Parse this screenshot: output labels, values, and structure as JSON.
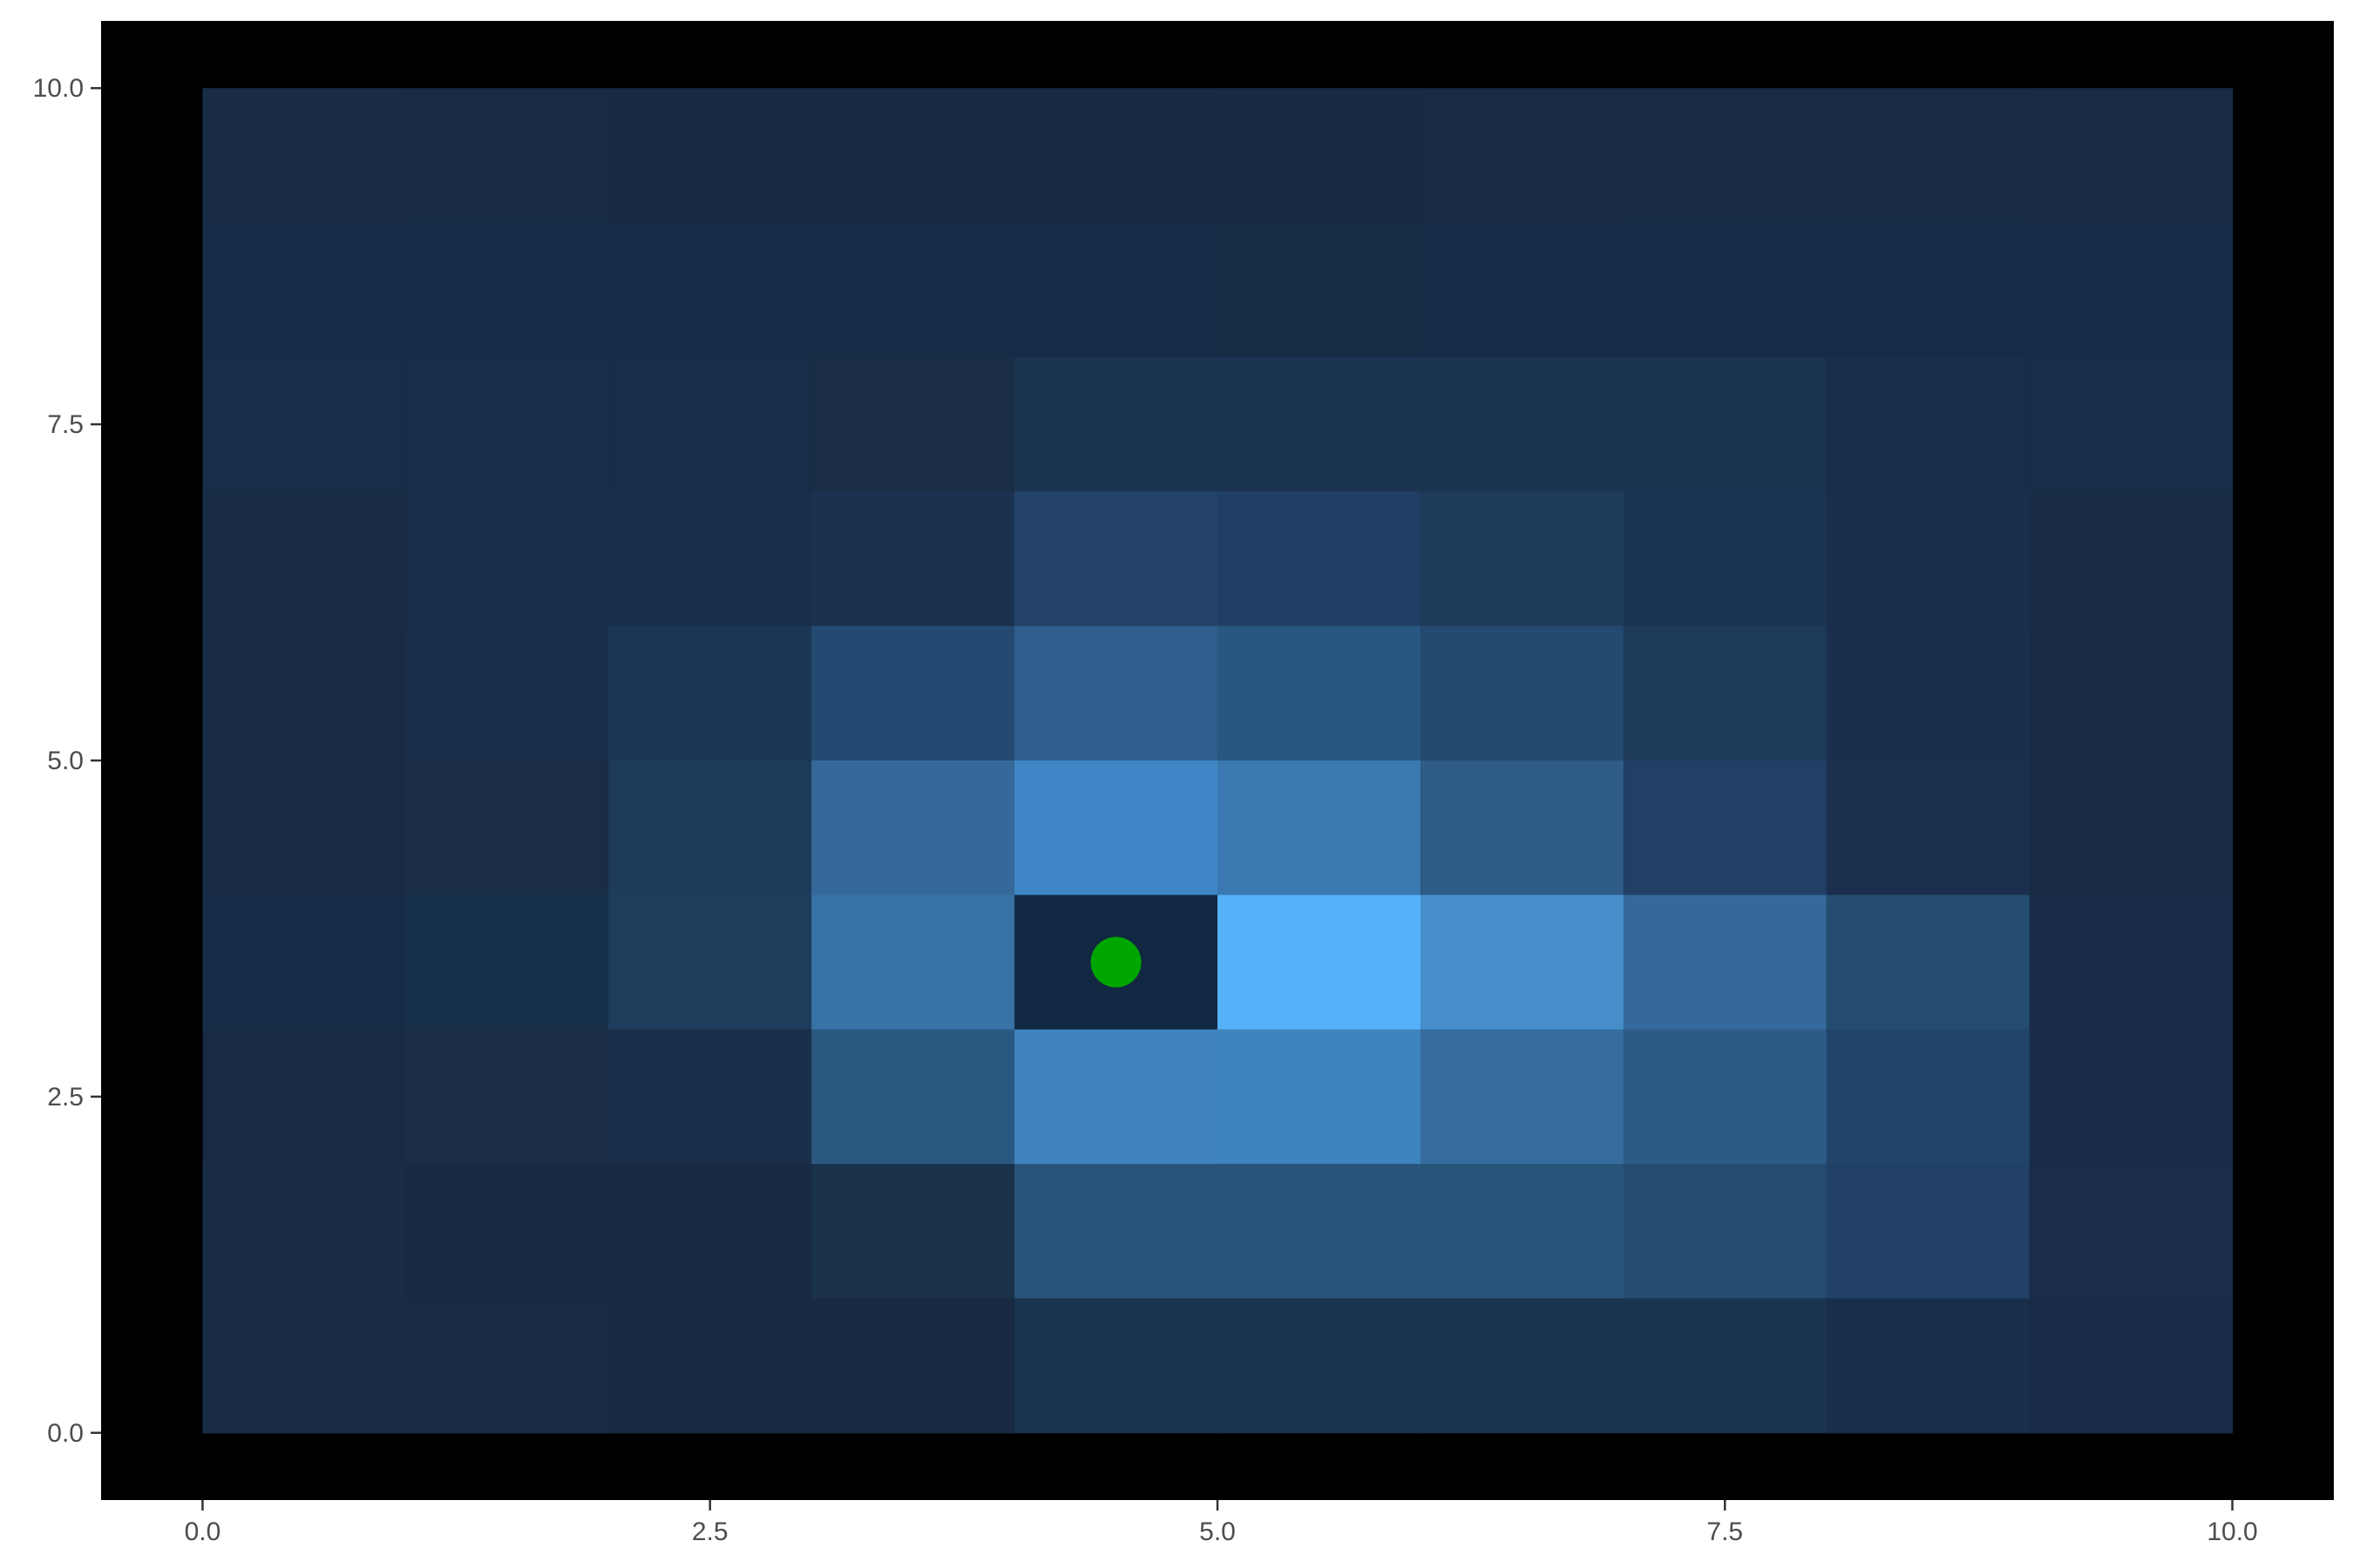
{
  "chart_data": {
    "type": "heatmap",
    "title": "",
    "xlabel": "",
    "ylabel": "",
    "xlim": [
      -0.5,
      10.5
    ],
    "ylim": [
      -0.5,
      10.5
    ],
    "grid": false,
    "legend": "none",
    "panel_background": "#000000",
    "x_ticks": [
      {
        "value": 0,
        "label": "0.0"
      },
      {
        "value": 2.5,
        "label": "2.5"
      },
      {
        "value": 5,
        "label": "5.0"
      },
      {
        "value": 7.5,
        "label": "7.5"
      },
      {
        "value": 10,
        "label": "10.0"
      }
    ],
    "y_ticks": [
      {
        "value": 0,
        "label": "0.0"
      },
      {
        "value": 2.5,
        "label": "2.5"
      },
      {
        "value": 5,
        "label": "5.0"
      },
      {
        "value": 7.5,
        "label": "7.5"
      },
      {
        "value": 10,
        "label": "10.0"
      }
    ],
    "x_edges": [
      0,
      1,
      2,
      3,
      4,
      5,
      6,
      7,
      8,
      9,
      10
    ],
    "y_edges": [
      0,
      1,
      2,
      3,
      4,
      5,
      6,
      7,
      8,
      9,
      10
    ],
    "rows_from_top": [
      [
        "#182c45",
        "#172b44",
        "#172a43",
        "#172a43",
        "#172a43",
        "#182a43",
        "#182a44",
        "#172b44",
        "#172b44",
        "#182b45"
      ],
      [
        "#172d47",
        "#162d48",
        "#172c47",
        "#172c46",
        "#172c46",
        "#162c45",
        "#162c46",
        "#152c47",
        "#152c48",
        "#162c47"
      ],
      [
        "#172d48",
        "#172d49",
        "#172d48",
        "#192d47",
        "#1b3452",
        "#1b3452",
        "#1a3350",
        "#1a3350",
        "#172d49",
        "#172d48"
      ],
      [
        "#182c45",
        "#182e48",
        "#172f4a",
        "#1a3150",
        "#234468",
        "#213f65",
        "#1f3b5a",
        "#1a3453",
        "#182e4b",
        "#192c46"
      ],
      [
        "#182b44",
        "#182d47",
        "#1b3554",
        "#244a72",
        "#2f5f8c",
        "#2a5781",
        "#244a6f",
        "#1e3a59",
        "#192f4d",
        "#182b45"
      ],
      [
        "#182b45",
        "#192d47",
        "#1e3a5b",
        "#35699a",
        "#3e86c5",
        "#3a79b1",
        "#2e5c87",
        "#223f65",
        "#1a304e",
        "#182b44"
      ],
      [
        "#172c47",
        "#163149",
        "#1d3d5d",
        "#3872a6",
        "#122842",
        "#57b1f9",
        "#458ec9",
        "#36699b",
        "#244c70",
        "#182c48"
      ],
      [
        "#182a44",
        "#192d47",
        "#1a2f4a",
        "#2b5880",
        "#3f84bf",
        "#3e84bd",
        "#366d9f",
        "#2d5b88",
        "#224469",
        "#192c47"
      ],
      [
        "#182c46",
        "#172a43",
        "#172a42",
        "#193149",
        "#285479",
        "#285479",
        "#285479",
        "#264c71",
        "#214166",
        "#192d48"
      ],
      [
        "#182c46",
        "#182b44",
        "#172a42",
        "#172a42",
        "#193450",
        "#193450",
        "#193450",
        "#1a3350",
        "#182e4a",
        "#182c47"
      ]
    ],
    "points": [
      {
        "x": 4.5,
        "y": 3.5,
        "color": "#00a600"
      }
    ]
  }
}
